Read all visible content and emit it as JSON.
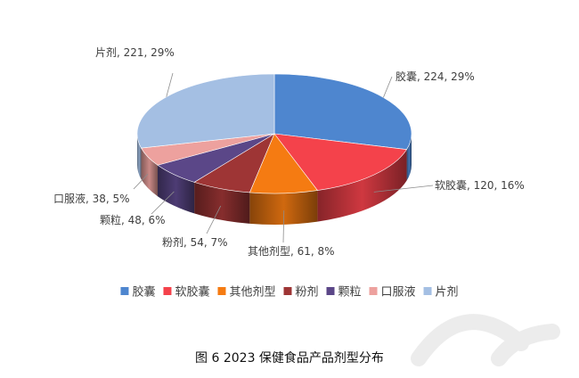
{
  "chart_data": {
    "type": "pie",
    "categories": [
      "胶囊",
      "软胶囊",
      "其他剂型",
      "粉剂",
      "颗粒",
      "口服液",
      "片剂"
    ],
    "values": [
      224,
      120,
      61,
      54,
      48,
      38,
      221
    ],
    "percent_labels": [
      "29%",
      "16%",
      "8%",
      "7%",
      "6%",
      "5%",
      "29%"
    ],
    "colors": [
      "#4E86CF",
      "#F4424B",
      "#F57B12",
      "#9E3535",
      "#5B4788",
      "#EDA19E",
      "#A4BFE3"
    ],
    "title": "",
    "legend_position": "bottom",
    "style": "3d"
  },
  "caption": "图 6 2023 保健食品产品剂型分布"
}
